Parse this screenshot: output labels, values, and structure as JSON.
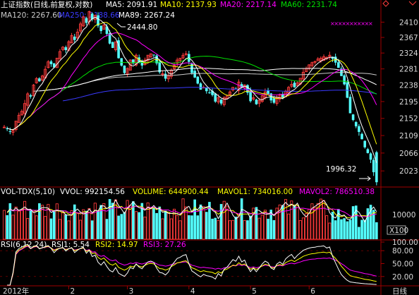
{
  "colors": {
    "bg": "#000000",
    "up": "#ff3c3c",
    "down": "#54ffff",
    "grid": "#a00000",
    "ma5": "#ffffff",
    "ma10": "#ffff00",
    "ma20": "#ff00ff",
    "ma60": "#00e000",
    "ma120": "#cccccc",
    "ma250": "#3a3aff",
    "ma89": "#ffffff",
    "label": "#ffffff",
    "mavol1": "#ffff00",
    "mavol2": "#ff00ff"
  },
  "header": {
    "title": "上证指数(日线,前复权,对数)",
    "ma5": "MA5: 2091.91",
    "ma10": "MA10: 2137.93",
    "ma20": "MA20: 2217.14",
    "ma60": "MA60: 2231.74",
    "ma120": "MA120: 2267.60",
    "ma250": "MA250: 2188.66",
    "ma89": "MA89: 2267.24"
  },
  "vol_header": {
    "title": "VOL-TDX(5,10)",
    "vvol": "VVOL: 992154.56",
    "volume": "VOLUME: 644900.44",
    "mavol1": "MAVOL1: 734016.00",
    "mavol2": "MAVOL2: 786510.38"
  },
  "rsi_header": {
    "title": "RSI(6,12,24)",
    "rsi1": "RSI1: 5.54",
    "rsi2": "RSI2: 14.97",
    "rsi3": "RSI3: 27.26"
  },
  "price_axis": [
    "2410",
    "2367",
    "2324",
    "2281",
    "2238",
    "2195",
    "2152",
    "2109",
    "2066",
    "2023"
  ],
  "vol_axis": {
    "tick": "10000",
    "unit": "X100"
  },
  "rsi_axis": [
    "100.00",
    "80.00",
    "50.00",
    "20.00"
  ],
  "x_axis": {
    "year_label": "2012年",
    "months": [
      "2",
      "3",
      "4",
      "5",
      "6"
    ],
    "period": "日线"
  },
  "annotations": {
    "high": "2444.80",
    "low": "1996.32"
  },
  "chart_data": [
    {
      "type": "candlestick",
      "title": "上证指数(日线,前复权,对数)",
      "log_scale": true,
      "x": "trading days, Jan 2012 – Jun 2012",
      "ylim": [
        1990,
        2445
      ],
      "high": 2444.8,
      "low": 1996.32,
      "series": [
        {
          "name": "MA5",
          "last": 2091.91
        },
        {
          "name": "MA10",
          "last": 2137.93
        },
        {
          "name": "MA20",
          "last": 2217.14
        },
        {
          "name": "MA60",
          "last": 2231.74
        },
        {
          "name": "MA120",
          "last": 2267.6
        },
        {
          "name": "MA250",
          "last": 2188.66
        },
        {
          "name": "MA89",
          "last": 2267.24
        }
      ],
      "closes": [
        2130,
        2125,
        2118,
        2122,
        2145,
        2160,
        2170,
        2190,
        2215,
        2208,
        2238,
        2255,
        2248,
        2262,
        2280,
        2300,
        2294,
        2285,
        2310,
        2328,
        2340,
        2332,
        2355,
        2372,
        2360,
        2382,
        2405,
        2425,
        2408,
        2440,
        2418,
        2430,
        2400,
        2385,
        2402,
        2377,
        2350,
        2338,
        2355,
        2310,
        2290,
        2270,
        2282,
        2305,
        2296,
        2318,
        2300,
        2290,
        2305,
        2318,
        2322,
        2318,
        2296,
        2272,
        2268,
        2255,
        2262,
        2278,
        2290,
        2305,
        2310,
        2318,
        2322,
        2300,
        2270,
        2258,
        2242,
        2226,
        2232,
        2222,
        2218,
        2212,
        2195,
        2205,
        2190,
        2205,
        2210,
        2220,
        2232,
        2228,
        2246,
        2232,
        2238,
        2218,
        2196,
        2205,
        2188,
        2198,
        2210,
        2220,
        2215,
        2198,
        2192,
        2206,
        2212,
        2206,
        2222,
        2232,
        2240,
        2232,
        2244,
        2256,
        2272,
        2282,
        2292,
        2298,
        2301,
        2308,
        2310,
        2314,
        2312,
        2318,
        2308,
        2298,
        2284,
        2262,
        2240,
        2205,
        2165,
        2148,
        2132,
        2118,
        2100,
        2080,
        2066,
        2050,
        2020,
        1996.32
      ]
    },
    {
      "type": "bar",
      "title": "VOL-TDX(5,10)",
      "series": [
        {
          "name": "VVOL",
          "last": 992154.56
        },
        {
          "name": "VOLUME",
          "last": 644900.44
        },
        {
          "name": "MAVOL1",
          "last": 734016.0
        },
        {
          "name": "MAVOL2",
          "last": 786510.38
        }
      ]
    },
    {
      "type": "line",
      "title": "RSI(6,12,24)",
      "ylim": [
        0,
        100
      ],
      "series": [
        {
          "name": "RSI1",
          "last": 5.54
        },
        {
          "name": "RSI2",
          "last": 14.97
        },
        {
          "name": "RSI3",
          "last": 27.26
        }
      ]
    }
  ]
}
